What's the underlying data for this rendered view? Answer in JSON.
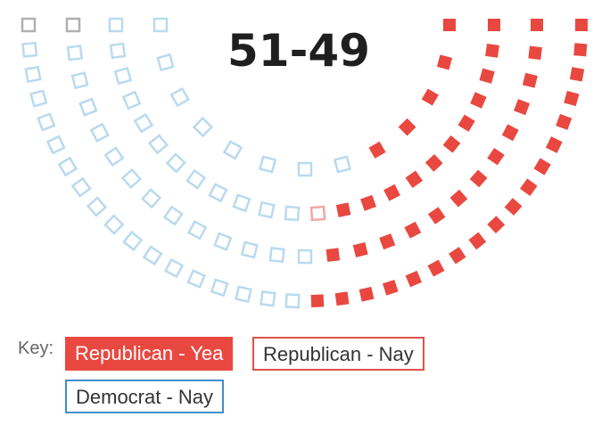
{
  "tally": "51-49",
  "key": {
    "label": "Key:",
    "items": [
      {
        "label": "Republican - Yea",
        "color": "#e94840"
      },
      {
        "label": "Republican - Nay",
        "color": "#e0524a"
      },
      {
        "label": "Democrat - Nay",
        "color": "#3f8ed0"
      }
    ]
  },
  "seat_colors": {
    "republican_yea": "#e94840",
    "republican_nay_outline": "#f2a6a2",
    "democrat_nay_outline": "#b9daef",
    "independent_outline": "#b0b0b0"
  },
  "seats": {
    "total": 100,
    "rows": [
      [
        "I",
        "D",
        "D",
        "D",
        "D",
        "D",
        "D",
        "D",
        "D",
        "D",
        "D",
        "D",
        "D",
        "D",
        "D",
        "D",
        "D",
        "D",
        "R",
        "R",
        "R",
        "R",
        "R",
        "R",
        "R",
        "R",
        "R",
        "R",
        "R",
        "R",
        "R",
        "R",
        "R",
        "R",
        "R",
        "R"
      ],
      [
        "I",
        "D",
        "D",
        "D",
        "D",
        "D",
        "D",
        "D",
        "D",
        "D",
        "D",
        "D",
        "D",
        "D",
        "R",
        "R",
        "R",
        "R",
        "R",
        "R",
        "R",
        "R",
        "R",
        "R",
        "R",
        "R",
        "R"
      ],
      [
        "D",
        "D",
        "D",
        "D",
        "D",
        "D",
        "D",
        "D",
        "D",
        "D",
        "D",
        "D",
        "N",
        "R",
        "R",
        "R",
        "R",
        "R",
        "R",
        "R",
        "R",
        "R",
        "R",
        "R"
      ],
      [
        "D",
        "D",
        "D",
        "D",
        "D",
        "D",
        "D",
        "D",
        "R",
        "R",
        "R",
        "R",
        "R"
      ]
    ]
  }
}
